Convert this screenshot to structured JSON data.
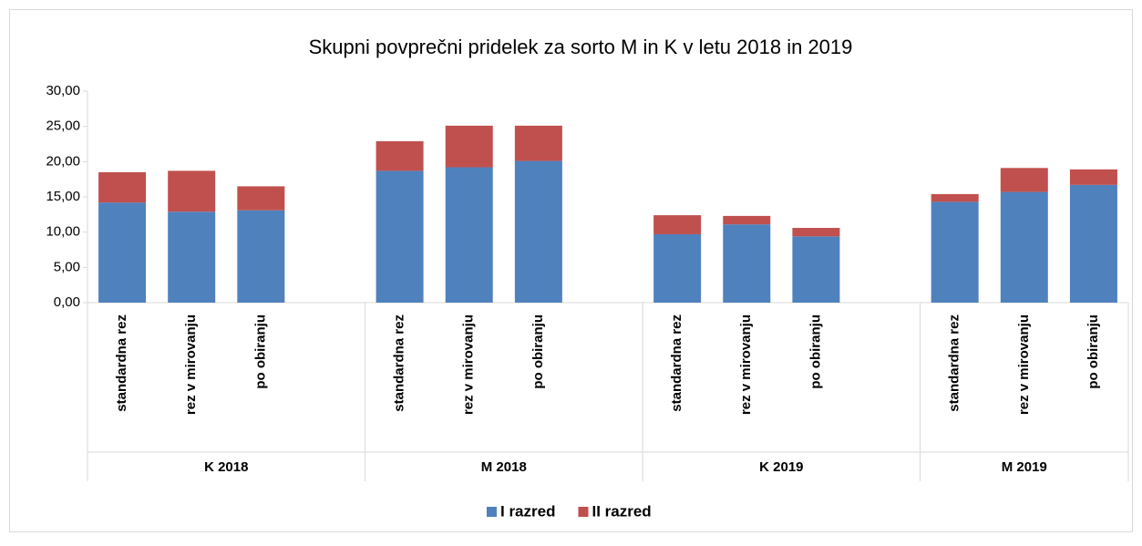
{
  "chart_data": {
    "type": "stacked_bar",
    "title": "Skupni povprečni pridelek za sorto M in K v letu 2018 in 2019",
    "categories": [
      "standardna rez",
      "rez v mirovanju",
      "po obiranju",
      null,
      "standardna rez",
      "rez v mirovanju",
      "po obiranju",
      null,
      "standardna rez",
      "rez v mirovanju",
      "po obiranju",
      null,
      "standardna rez",
      "rez v mirovanju",
      "po obiranju"
    ],
    "groups": [
      "K 2018",
      "M 2018",
      "K 2019",
      "M 2019"
    ],
    "series": [
      {
        "name": "I razred",
        "color": "#4f81bd",
        "values": [
          14.2,
          12.9,
          13.1,
          null,
          18.7,
          19.2,
          20.1,
          null,
          9.7,
          11.1,
          9.4,
          null,
          14.3,
          15.7,
          16.7
        ]
      },
      {
        "name": "II razred",
        "color": "#c0504d",
        "values": [
          4.3,
          5.8,
          3.4,
          null,
          4.2,
          5.9,
          5.0,
          null,
          2.7,
          1.2,
          1.2,
          null,
          1.1,
          3.4,
          2.2
        ]
      }
    ],
    "ylim": [
      0,
      30
    ],
    "yticks": [
      {
        "value": 0,
        "label": "0,00"
      },
      {
        "value": 5,
        "label": "5,00"
      },
      {
        "value": 10,
        "label": "10,00"
      },
      {
        "value": 15,
        "label": "15,00"
      },
      {
        "value": 20,
        "label": "20,00"
      },
      {
        "value": 25,
        "label": "25,00"
      },
      {
        "value": 30,
        "label": "30,00"
      }
    ],
    "legend": "bottom"
  }
}
